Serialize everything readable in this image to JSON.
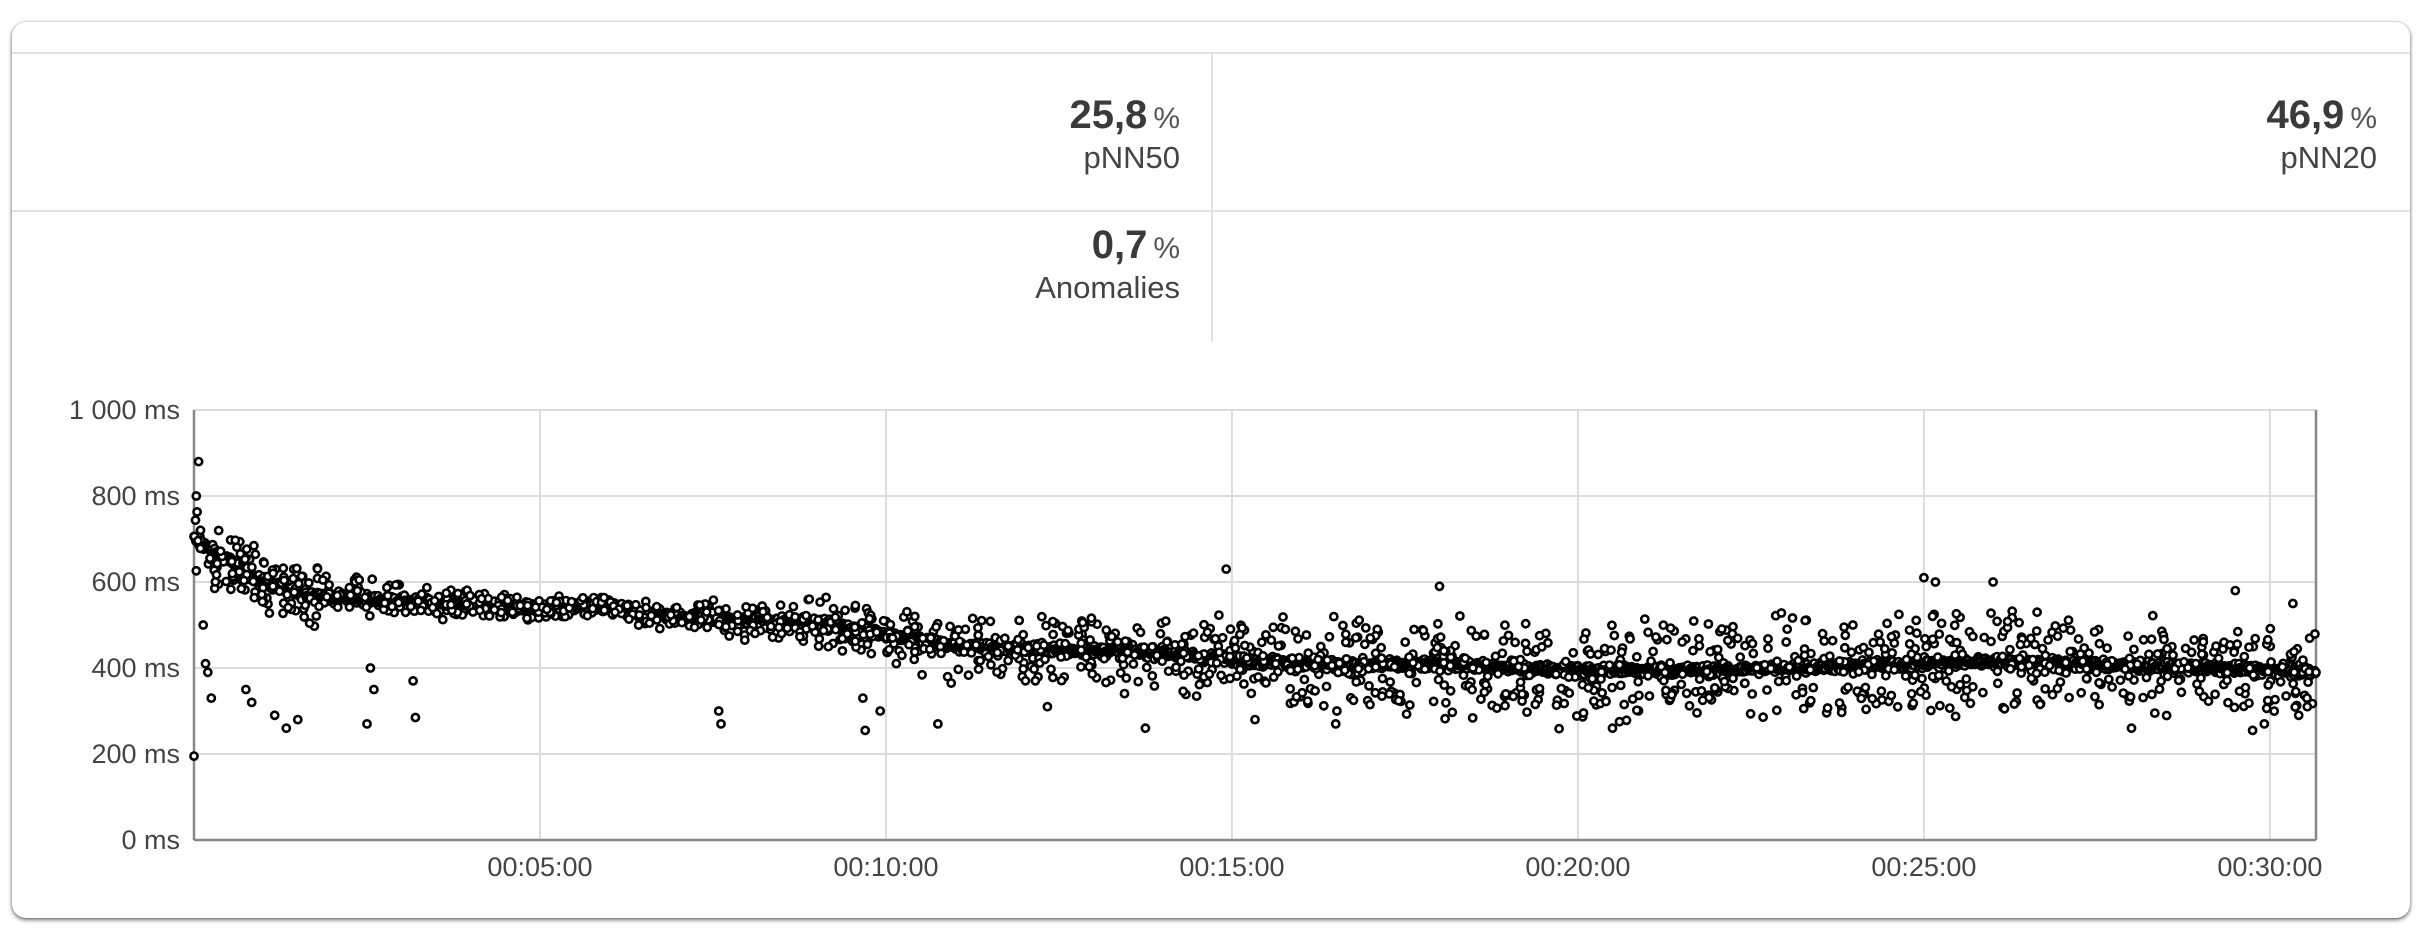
{
  "stats": {
    "pnn50": {
      "value": "25,8",
      "unit": "%",
      "label": "pNN50"
    },
    "pnn20": {
      "value": "46,9",
      "unit": "%",
      "label": "pNN20"
    },
    "anomalies": {
      "value": "0,7",
      "unit": "%",
      "label": "Anomalies"
    }
  },
  "chart_data": {
    "type": "scatter",
    "title": "",
    "xlabel": "",
    "ylabel": "",
    "xlim": [
      "00:00:00",
      "00:30:40"
    ],
    "ylim": [
      0,
      1000
    ],
    "grid": true,
    "y_ticks": [
      0,
      200,
      400,
      600,
      800,
      1000
    ],
    "y_tick_labels": [
      "0 ms",
      "200 ms",
      "400 ms",
      "600 ms",
      "800 ms",
      "1 000 ms"
    ],
    "x_ticks": [
      "00:05:00",
      "00:10:00",
      "00:15:00",
      "00:20:00",
      "00:25:00",
      "00:30:00"
    ],
    "marker_color": "#000000",
    "series": [
      {
        "trend_ms": [
          [
            "00:00:00",
            700
          ],
          [
            "00:00:30",
            650
          ],
          [
            "00:01:00",
            600
          ],
          [
            "00:01:30",
            575
          ],
          [
            "00:02:00",
            565
          ],
          [
            "00:02:30",
            560
          ],
          [
            "00:03:00",
            555
          ],
          [
            "00:04:00",
            545
          ],
          [
            "00:05:00",
            535
          ],
          [
            "00:06:00",
            545
          ],
          [
            "00:06:30",
            525
          ],
          [
            "00:07:00",
            520
          ],
          [
            "00:08:00",
            510
          ],
          [
            "00:09:00",
            505
          ],
          [
            "00:10:00",
            480
          ],
          [
            "00:11:00",
            450
          ],
          [
            "00:12:00",
            445
          ],
          [
            "00:13:00",
            440
          ],
          [
            "00:14:00",
            435
          ],
          [
            "00:15:00",
            420
          ],
          [
            "00:16:00",
            410
          ],
          [
            "00:17:00",
            405
          ],
          [
            "00:18:00",
            410
          ],
          [
            "00:19:00",
            400
          ],
          [
            "00:20:00",
            395
          ],
          [
            "00:21:00",
            395
          ],
          [
            "00:22:00",
            395
          ],
          [
            "00:23:00",
            400
          ],
          [
            "00:24:00",
            405
          ],
          [
            "00:25:00",
            410
          ],
          [
            "00:26:00",
            415
          ],
          [
            "00:27:00",
            410
          ],
          [
            "00:28:00",
            405
          ],
          [
            "00:29:00",
            400
          ],
          [
            "00:30:00",
            395
          ],
          [
            "00:30:40",
            390
          ]
        ],
        "spread_ms": [
          [
            "00:00:00",
            70
          ],
          [
            "00:02:00",
            50
          ],
          [
            "00:05:00",
            20
          ],
          [
            "00:07:00",
            25
          ],
          [
            "00:10:00",
            55
          ],
          [
            "00:14:00",
            70
          ],
          [
            "00:16:00",
            90
          ],
          [
            "00:20:00",
            95
          ],
          [
            "00:25:00",
            100
          ],
          [
            "00:30:40",
            85
          ]
        ],
        "outliers_ms": [
          [
            "00:00:00",
            195
          ],
          [
            "00:00:02",
            800
          ],
          [
            "00:00:04",
            880
          ],
          [
            "00:00:08",
            500
          ],
          [
            "00:00:10",
            410
          ],
          [
            "00:00:12",
            390
          ],
          [
            "00:00:15",
            330
          ],
          [
            "00:00:45",
            350
          ],
          [
            "00:00:50",
            320
          ],
          [
            "00:01:10",
            290
          ],
          [
            "00:01:20",
            260
          ],
          [
            "00:01:30",
            280
          ],
          [
            "00:02:30",
            270
          ],
          [
            "00:02:33",
            400
          ],
          [
            "00:02:36",
            350
          ],
          [
            "00:03:10",
            370
          ],
          [
            "00:03:12",
            285
          ],
          [
            "00:07:35",
            300
          ],
          [
            "00:07:37",
            270
          ],
          [
            "00:09:40",
            330
          ],
          [
            "00:09:42",
            255
          ],
          [
            "00:09:55",
            300
          ],
          [
            "00:10:45",
            270
          ],
          [
            "00:12:20",
            310
          ],
          [
            "00:13:45",
            260
          ],
          [
            "00:14:55",
            630
          ],
          [
            "00:15:20",
            280
          ],
          [
            "00:16:30",
            270
          ],
          [
            "00:18:00",
            590
          ],
          [
            "00:20:30",
            260
          ],
          [
            "00:25:00",
            610
          ],
          [
            "00:25:10",
            600
          ],
          [
            "00:26:00",
            600
          ],
          [
            "00:28:00",
            260
          ],
          [
            "00:29:30",
            580
          ],
          [
            "00:29:45",
            255
          ],
          [
            "00:30:20",
            550
          ],
          [
            "00:30:25",
            290
          ]
        ]
      }
    ]
  }
}
